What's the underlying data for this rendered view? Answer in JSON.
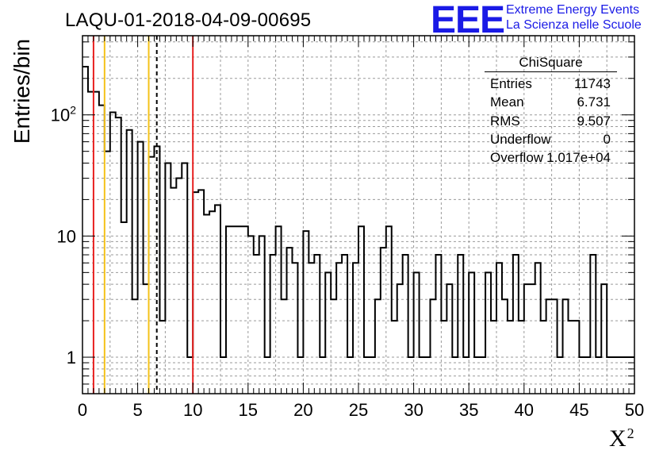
{
  "header": {
    "title": "LAQU-01-2018-04-09-00695",
    "logo_mark": "EEE",
    "logo_line1": "Extreme Energy Events",
    "logo_line2": "La Scienza nelle Scuole"
  },
  "stats_box": {
    "name": "ChiSquare",
    "rows": [
      {
        "label": "Entries",
        "value": "11743"
      },
      {
        "label": "Mean",
        "value": "6.731"
      },
      {
        "label": "RMS",
        "value": "9.507"
      },
      {
        "label": "Underflow",
        "value": "0"
      },
      {
        "label": "Overflow",
        "value": "1.017e+04"
      }
    ]
  },
  "colors": {
    "histogram": "#000000",
    "red_line": "#e8201f",
    "yellow_line": "#f4c21a",
    "dashed_line": "#000000",
    "grid": "#9a9a9a",
    "logo": "#1a1ae6"
  },
  "chart_data": {
    "type": "histogram",
    "title": "LAQU-01-2018-04-09-00695",
    "xlabel": "X",
    "xlabel_superscript": "2",
    "ylabel": "Entries/bin",
    "xlim": [
      0,
      50
    ],
    "ylim": [
      0.5,
      450
    ],
    "yscale": "log",
    "grid": true,
    "bin_width": 0.5,
    "xticks": [
      0,
      5,
      10,
      15,
      20,
      25,
      30,
      35,
      40,
      45,
      50
    ],
    "yticks": [
      {
        "value": 1,
        "label": "1"
      },
      {
        "value": 10,
        "label": "10"
      },
      {
        "value": 100,
        "label": "10",
        "sup": "2"
      }
    ],
    "values": [
      250,
      155,
      155,
      120,
      50,
      105,
      95,
      13,
      75,
      3,
      60,
      4,
      45,
      55,
      2,
      40,
      25,
      30,
      40,
      1,
      23,
      24,
      15,
      16,
      18,
      1,
      12,
      12,
      12,
      12,
      10,
      7,
      10,
      1,
      7,
      12,
      3,
      8,
      6,
      1,
      11,
      6,
      7,
      1,
      5,
      3,
      6,
      7,
      1,
      6,
      12,
      1,
      1,
      3,
      8,
      12,
      2,
      4,
      7,
      1,
      5,
      1,
      1,
      3,
      7,
      2,
      4,
      1,
      7,
      1,
      5,
      1,
      1,
      5,
      2,
      6,
      3,
      2,
      7,
      2,
      4,
      4,
      6,
      2,
      3,
      3,
      1,
      3,
      2,
      2,
      1,
      1,
      7,
      1,
      4,
      1,
      1,
      1,
      1,
      1
    ],
    "vertical_lines": [
      {
        "x": 1.0,
        "style": "solid",
        "color": "#e8201f"
      },
      {
        "x": 2.0,
        "style": "solid",
        "color": "#f4c21a"
      },
      {
        "x": 6.0,
        "style": "solid",
        "color": "#f4c21a"
      },
      {
        "x": 6.731,
        "style": "dashed",
        "color": "#000000"
      },
      {
        "x": 10.0,
        "style": "solid",
        "color": "#e8201f"
      }
    ]
  }
}
